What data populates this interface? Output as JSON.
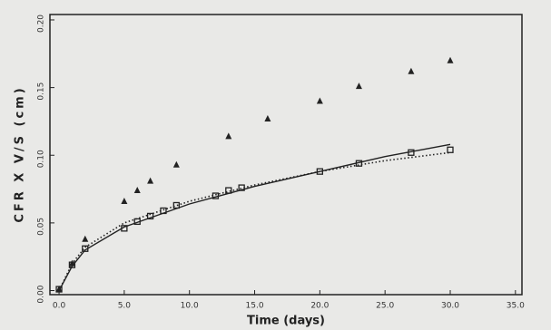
{
  "chart_data": {
    "type": "scatter",
    "xlabel": "Time (days)",
    "ylabel": "CFR X V/S (cm)",
    "xlim": [
      -0.7,
      35.5
    ],
    "ylim": [
      -0.003,
      0.204
    ],
    "xticks": [
      {
        "value": 0,
        "label": "0.0"
      },
      {
        "value": 5,
        "label": "5.0"
      },
      {
        "value": 10,
        "label": "10.0"
      },
      {
        "value": 15,
        "label": "15.0"
      },
      {
        "value": 20,
        "label": "20.0"
      },
      {
        "value": 25,
        "label": "25.0"
      },
      {
        "value": 30,
        "label": "30.0"
      },
      {
        "value": 35,
        "label": "35.0"
      }
    ],
    "yticks": [
      {
        "value": 0,
        "label": "0.00"
      },
      {
        "value": 0.05,
        "label": "0.05"
      },
      {
        "value": 0.1,
        "label": "0.10"
      },
      {
        "value": 0.15,
        "label": "0.15"
      },
      {
        "value": 0.2,
        "label": "0.20"
      }
    ],
    "series": [
      {
        "marker": "triangle",
        "color": "#222222",
        "x": [
          0,
          1,
          2,
          5,
          6,
          7,
          9,
          13,
          16,
          20,
          23,
          27,
          30
        ],
        "values": [
          0.001,
          0.02,
          0.038,
          0.066,
          0.074,
          0.081,
          0.093,
          0.114,
          0.127,
          0.14,
          0.151,
          0.162,
          0.17
        ]
      },
      {
        "marker": "square",
        "color": "#222222",
        "x": [
          0,
          1,
          2,
          5,
          6,
          7,
          8,
          9,
          12,
          13,
          14,
          20,
          23,
          27,
          30
        ],
        "values": [
          0.001,
          0.019,
          0.031,
          0.046,
          0.051,
          0.055,
          0.059,
          0.063,
          0.07,
          0.074,
          0.076,
          0.088,
          0.094,
          0.102,
          0.104
        ]
      },
      {
        "line": "solid",
        "color": "#222222",
        "x": [
          0,
          1,
          2,
          5,
          10,
          15,
          20,
          25,
          30
        ],
        "values": [
          0,
          0.018,
          0.03,
          0.047,
          0.064,
          0.077,
          0.088,
          0.099,
          0.108
        ]
      },
      {
        "line": "dotted",
        "color": "#222222",
        "x": [
          0,
          1,
          2,
          5,
          10,
          15,
          20,
          25,
          30
        ],
        "values": [
          0,
          0.02,
          0.032,
          0.05,
          0.066,
          0.078,
          0.088,
          0.096,
          0.102
        ]
      }
    ]
  }
}
